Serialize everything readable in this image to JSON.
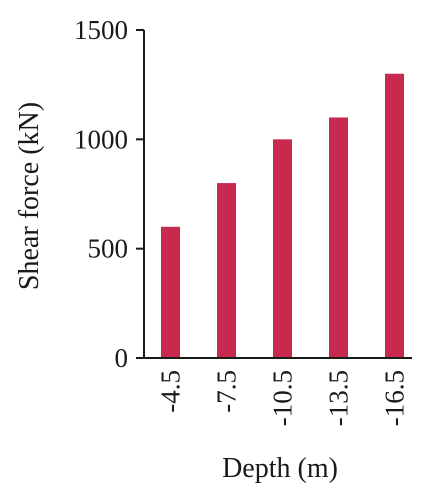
{
  "chart_data": {
    "type": "bar",
    "categories": [
      "-4.5",
      "-7.5",
      "-10.5",
      "-13.5",
      "-16.5"
    ],
    "values": [
      600,
      800,
      1000,
      1100,
      1300
    ],
    "title": "",
    "xlabel": "Depth (m)",
    "ylabel": "Shear force (kN)",
    "ylim": [
      0,
      1500
    ],
    "yticks": [
      0,
      500,
      1000,
      1500
    ],
    "grid": false,
    "legend": "none",
    "bar_color": "#c8294f",
    "axis_color": "#1a1a1a"
  }
}
